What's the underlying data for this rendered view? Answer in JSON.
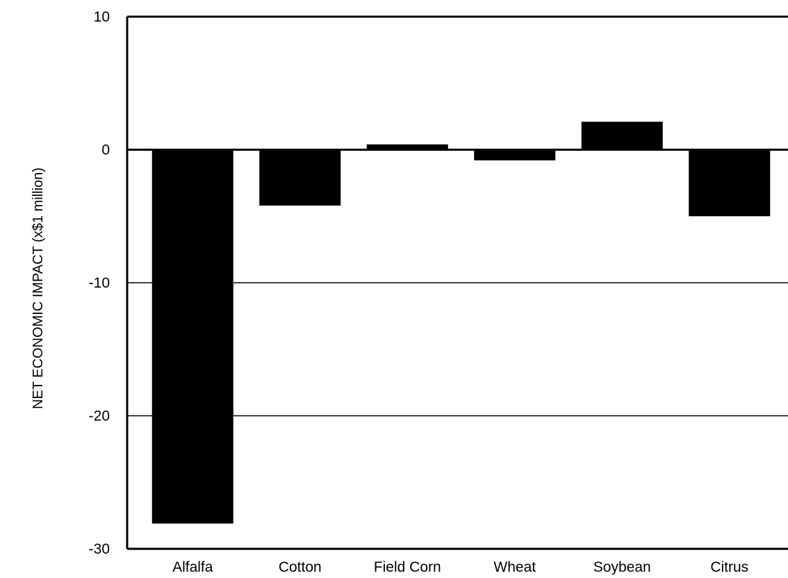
{
  "chart_data": {
    "type": "bar",
    "title": "",
    "xlabel": "",
    "ylabel": "NET ECONOMIC IMPACT (x$1 million)",
    "categories": [
      "Alfalfa",
      "Cotton",
      "Field Corn",
      "Wheat",
      "Soybean",
      "Citrus"
    ],
    "values": [
      -28.1,
      -4.2,
      0.4,
      -0.8,
      2.1,
      -5.0
    ],
    "ylim": [
      -30,
      10
    ],
    "yticks": [
      10,
      0,
      -10,
      -20,
      -30
    ],
    "ytick_labels": [
      "10",
      "0",
      "-10",
      "-20",
      "-30"
    ],
    "grid": "horizontal",
    "bar_color": "#000000",
    "legend": "none"
  }
}
